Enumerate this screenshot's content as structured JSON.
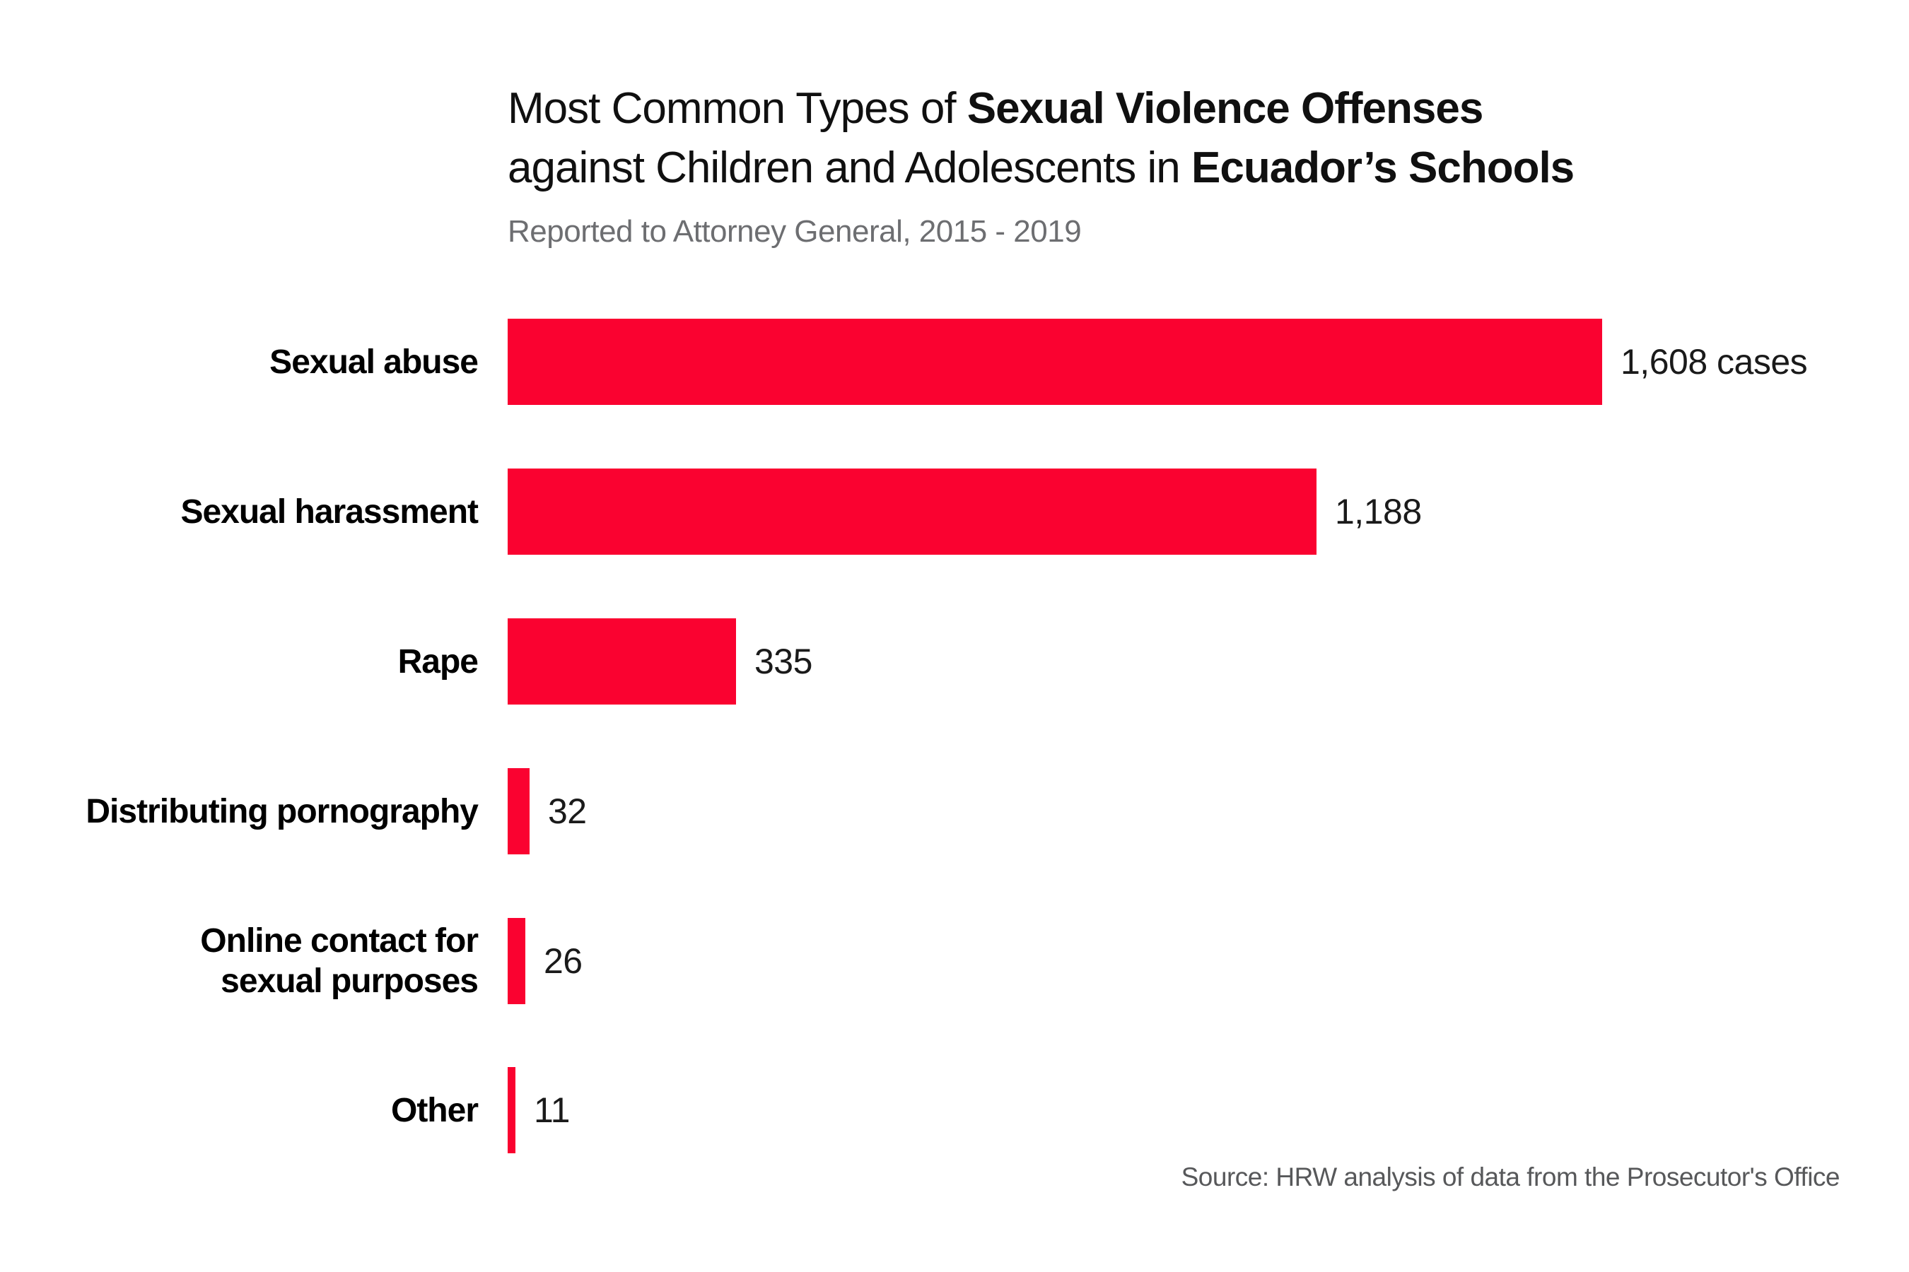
{
  "title": {
    "line1_regular": "Most Common Types of ",
    "line1_bold": "Sexual Violence Offenses",
    "line2_regular": "against Children and Adolescents in ",
    "line2_bold": "Ecuador’s Schools"
  },
  "subtitle": "Reported to Attorney General, 2015 - 2019",
  "source_note": "Source: HRW analysis of data from the Prosecutor's Office",
  "colors": {
    "bar_red": "#fa0230",
    "title_text": "#101010",
    "subtitle_gray": "#6d6e71",
    "value_text": "#1a1a1a",
    "source_gray": "#57585a"
  },
  "chart_data": {
    "type": "bar",
    "orientation": "horizontal",
    "title": "Most Common Types of Sexual Violence Offenses against Children and Adolescents in Ecuador’s Schools",
    "subtitle": "Reported to Attorney General, 2015 - 2019",
    "source": "Source: HRW analysis of data from the Prosecutor's Office",
    "categories": [
      "Sexual abuse",
      "Sexual harassment",
      "Rape",
      "Distributing pornography",
      "Online contact for sexual purposes",
      "Other"
    ],
    "category_lines": [
      [
        "Sexual abuse"
      ],
      [
        "Sexual harassment"
      ],
      [
        "Rape"
      ],
      [
        "Distributing pornography"
      ],
      [
        "Online contact for",
        "sexual purposes"
      ],
      [
        "Other"
      ]
    ],
    "values": [
      1608,
      1188,
      335,
      32,
      26,
      11
    ],
    "value_labels": [
      "1,608 cases",
      "1,188",
      "335",
      "32",
      "26",
      "11"
    ],
    "xlabel": "",
    "ylabel": "",
    "xlim": [
      0,
      1670
    ],
    "grid": false,
    "legend": false,
    "bar_color": "#fa0230",
    "value_label_position": "end-of-bar"
  }
}
